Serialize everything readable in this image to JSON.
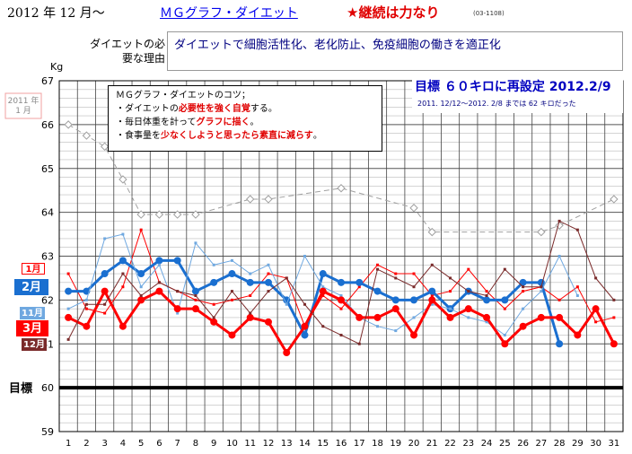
{
  "header": {
    "date_title": "2012 年 12 月～",
    "link_title": "ＭＧグラフ・ダイエット",
    "motto": "★継続は力なり",
    "tag": "(03-1108)"
  },
  "reason": {
    "label": "ダイエットの必要な理由",
    "text": "ダイエットで細胞活性化、老化防止、免疫細胞の働きを適正化"
  },
  "tips": {
    "title": "ＭＧグラフ・ダイエットのコツ；",
    "line1_pre": "・ダイエットの",
    "line1_em": "必要性を強く自覚",
    "line1_post": "する。",
    "line2_pre": "・毎日体重を計って",
    "line2_em": "グラフに描く",
    "line2_post": "。",
    "line3_pre": "・食事量を",
    "line3_em": "少なくしようと思ったら素直に減らす",
    "line3_post": "。"
  },
  "goal": {
    "title": "目標 ６０キロに再設定 2012.2/9",
    "subtitle": "2011. 12/12～2012. 2/8 までは 62 キロだった"
  },
  "colors": {
    "red": "#ff0000",
    "blue": "#1a6fd0",
    "lightblue": "#6fa8e0",
    "darkred": "#7a2a2a",
    "gray": "#a0a0a0",
    "goal": "#000000"
  },
  "chart_data": {
    "type": "line",
    "ylabel": "Kg",
    "ylim": [
      59,
      67
    ],
    "yticks": [
      59,
      60,
      61,
      62,
      63,
      64,
      65,
      66,
      67
    ],
    "categories": [
      "1",
      "2",
      "3",
      "4",
      "5",
      "6",
      "7",
      "8",
      "9",
      "10",
      "11",
      "12",
      "13",
      "14",
      "15",
      "16",
      "17",
      "18",
      "19",
      "20",
      "21",
      "22",
      "23",
      "24",
      "25",
      "26",
      "27",
      "28",
      "29",
      "30",
      "31"
    ],
    "goal_label": "目標",
    "goal_value": 60,
    "annotation": {
      "label": "2011 年\n1 月",
      "value": 66
    },
    "series": [
      {
        "name": "2011 年 1 月",
        "color": "#a0a0a0",
        "dashed": true,
        "values": [
          66.0,
          65.75,
          65.5,
          64.75,
          63.95,
          63.95,
          63.95,
          63.95,
          null,
          null,
          64.3,
          64.3,
          null,
          null,
          null,
          64.55,
          null,
          null,
          null,
          64.1,
          63.55,
          null,
          null,
          null,
          null,
          null,
          63.55,
          63.7,
          null,
          null,
          64.3
        ]
      },
      {
        "name": "1月",
        "color": "#ff0000",
        "width": 1,
        "values": [
          62.6,
          61.8,
          61.7,
          62.3,
          63.6,
          62.4,
          62.2,
          62.0,
          61.9,
          62.0,
          62.1,
          62.6,
          62.5,
          61.4,
          62.1,
          61.8,
          62.3,
          62.8,
          62.6,
          62.6,
          62.1,
          62.2,
          62.7,
          62.2,
          61.8,
          62.2,
          62.3,
          62.0,
          62.3,
          61.5,
          61.6
        ]
      },
      {
        "name": "2月",
        "color": "#1a6fd0",
        "width": 3,
        "values": [
          62.2,
          62.2,
          62.6,
          62.9,
          62.6,
          62.9,
          62.9,
          62.2,
          62.4,
          62.6,
          62.4,
          62.4,
          62.0,
          61.2,
          62.6,
          62.4,
          62.4,
          62.2,
          62.0,
          62.0,
          62.2,
          61.8,
          62.2,
          62.0,
          62.0,
          62.4,
          62.4,
          61.0,
          null,
          null,
          null
        ]
      },
      {
        "name": "11月",
        "color": "#6fa8e0",
        "width": 1,
        "values": [
          61.8,
          62.0,
          63.4,
          63.5,
          62.3,
          62.8,
          61.7,
          63.3,
          62.8,
          62.9,
          62.6,
          62.8,
          61.9,
          63.0,
          62.3,
          62.1,
          61.6,
          61.4,
          61.3,
          61.6,
          61.9,
          61.8,
          61.6,
          61.5,
          61.2,
          61.8,
          62.2,
          63.0,
          62.1,
          null,
          null
        ]
      },
      {
        "name": "3月",
        "color": "#ff0000",
        "width": 3,
        "values": [
          61.6,
          61.4,
          62.2,
          61.4,
          62.0,
          62.2,
          61.8,
          61.8,
          61.5,
          61.2,
          61.6,
          61.5,
          60.8,
          61.4,
          62.2,
          62.0,
          61.6,
          61.6,
          61.8,
          61.2,
          62.0,
          61.6,
          61.8,
          61.6,
          61.0,
          61.4,
          61.6,
          61.6,
          61.2,
          61.8,
          61.0
        ]
      },
      {
        "name": "12月",
        "color": "#7a2a2a",
        "width": 1,
        "values": [
          61.1,
          61.9,
          61.9,
          62.6,
          62.1,
          62.4,
          62.2,
          62.1,
          61.6,
          62.2,
          61.7,
          62.2,
          62.5,
          61.9,
          61.4,
          61.2,
          61.0,
          62.7,
          62.5,
          62.3,
          62.8,
          62.5,
          62.2,
          62.1,
          62.7,
          62.3,
          62.3,
          63.8,
          63.6,
          62.5,
          62.0
        ]
      }
    ],
    "month_labels": [
      {
        "name": "1月",
        "value": 62.72,
        "color": "#ff0000",
        "filled": false
      },
      {
        "name": "2月",
        "value": 62.3,
        "color": "#1a6fd0",
        "filled": true
      },
      {
        "name": "11月",
        "value": 61.7,
        "color": "#6fa8e0",
        "filled": true
      },
      {
        "name": "3月",
        "value": 61.35,
        "color": "#ff0000",
        "filled": true
      },
      {
        "name": "12月",
        "value": 60.98,
        "color": "#7a2a2a",
        "filled": true
      }
    ]
  }
}
